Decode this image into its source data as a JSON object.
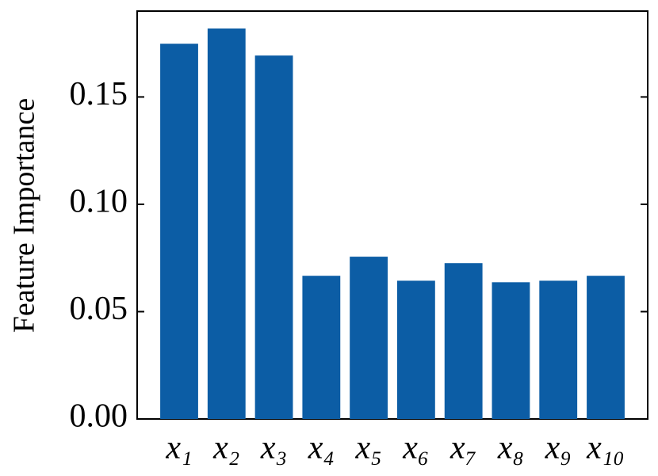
{
  "chart_data": {
    "type": "bar",
    "y_label": "Feature Importance",
    "categories": [
      "x₁",
      "x₂",
      "x₃",
      "x₄",
      "x₅",
      "x₆",
      "x₇",
      "x₈",
      "x₉",
      "x₁₀"
    ],
    "values": [
      0.1748,
      0.1819,
      0.1693,
      0.0667,
      0.0756,
      0.0644,
      0.0726,
      0.0637,
      0.0644,
      0.0667
    ],
    "color": "#0c5da5",
    "ylim": [
      0,
      0.19
    ],
    "yticks": [
      {
        "value": 0,
        "label": "0.00"
      },
      {
        "value": 0.05,
        "label": "0.05"
      },
      {
        "value": 0.1,
        "label": "0.10"
      },
      {
        "value": 0.15,
        "label": "0.15"
      }
    ]
  }
}
